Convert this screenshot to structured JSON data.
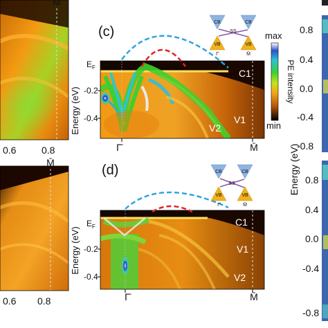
{
  "colors": {
    "fermi_bright": "#ffd23a",
    "band_green": "#5fd13a",
    "band_orange": "#e9890f",
    "bg_dark": "#2a1200",
    "cb_triangle": "#8db4e2",
    "vb_triangle": "#f0b21d",
    "ss_line": "#8a5aa8",
    "dashed_blue": "#2ea3dc",
    "dashed_red": "#e02424",
    "right_panel": "#3c66ae"
  },
  "chart_data": [
    {
      "panel": "left-top",
      "type": "heatmap",
      "x_tick_labels": [
        "0.6",
        "0.8"
      ],
      "x_point_label": "M̄",
      "description_colormap": "orange-green ARPES intensity"
    },
    {
      "panel": "c",
      "type": "heatmap",
      "panel_label": "(c)",
      "ylabel": "Energy (eV)",
      "y_tick_labels": [
        "E_F",
        "-0.2",
        "-0.4"
      ],
      "fermi_label": "E",
      "fermi_sub": "F",
      "yticks": [
        "-0.2",
        "-0.4"
      ],
      "x_point_labels": [
        "Γ̄",
        "M̄"
      ],
      "band_labels": [
        "C1",
        "V1",
        "V2"
      ],
      "colorbar": {
        "title": "PE intensity",
        "max": "max",
        "min": "min"
      },
      "inset": {
        "cb": "CB",
        "vb": "VB",
        "ss": "SS",
        "left_point": "Γ̄",
        "right_point": "M̄"
      }
    },
    {
      "panel": "left-bottom",
      "type": "heatmap",
      "x_tick_labels": [
        "0.6",
        "0.8"
      ],
      "x_point_label": "M̄"
    },
    {
      "panel": "d",
      "type": "heatmap",
      "panel_label": "(d)",
      "ylabel": "Energy (eV)",
      "fermi_label": "E",
      "fermi_sub": "F",
      "yticks": [
        "-0.2",
        "-0.4"
      ],
      "x_point_labels": [
        "Γ̄",
        "M̄"
      ],
      "band_labels": [
        "C1",
        "V1",
        "V2"
      ],
      "inset": {
        "cb": "CB",
        "vb": "VB",
        "ss": "SS",
        "left_point": "Γ̄",
        "right_point": "M̄"
      }
    },
    {
      "panel": "right",
      "type": "heatmap",
      "ylabel": "Energy (eV)",
      "yticks_top": [
        "0.8",
        "0.4",
        "0.0",
        "-0.4",
        "-0.8"
      ],
      "yticks_bottom": [
        "0.8",
        "0.4",
        "0.0",
        "-0.4",
        "-0.8"
      ]
    }
  ]
}
